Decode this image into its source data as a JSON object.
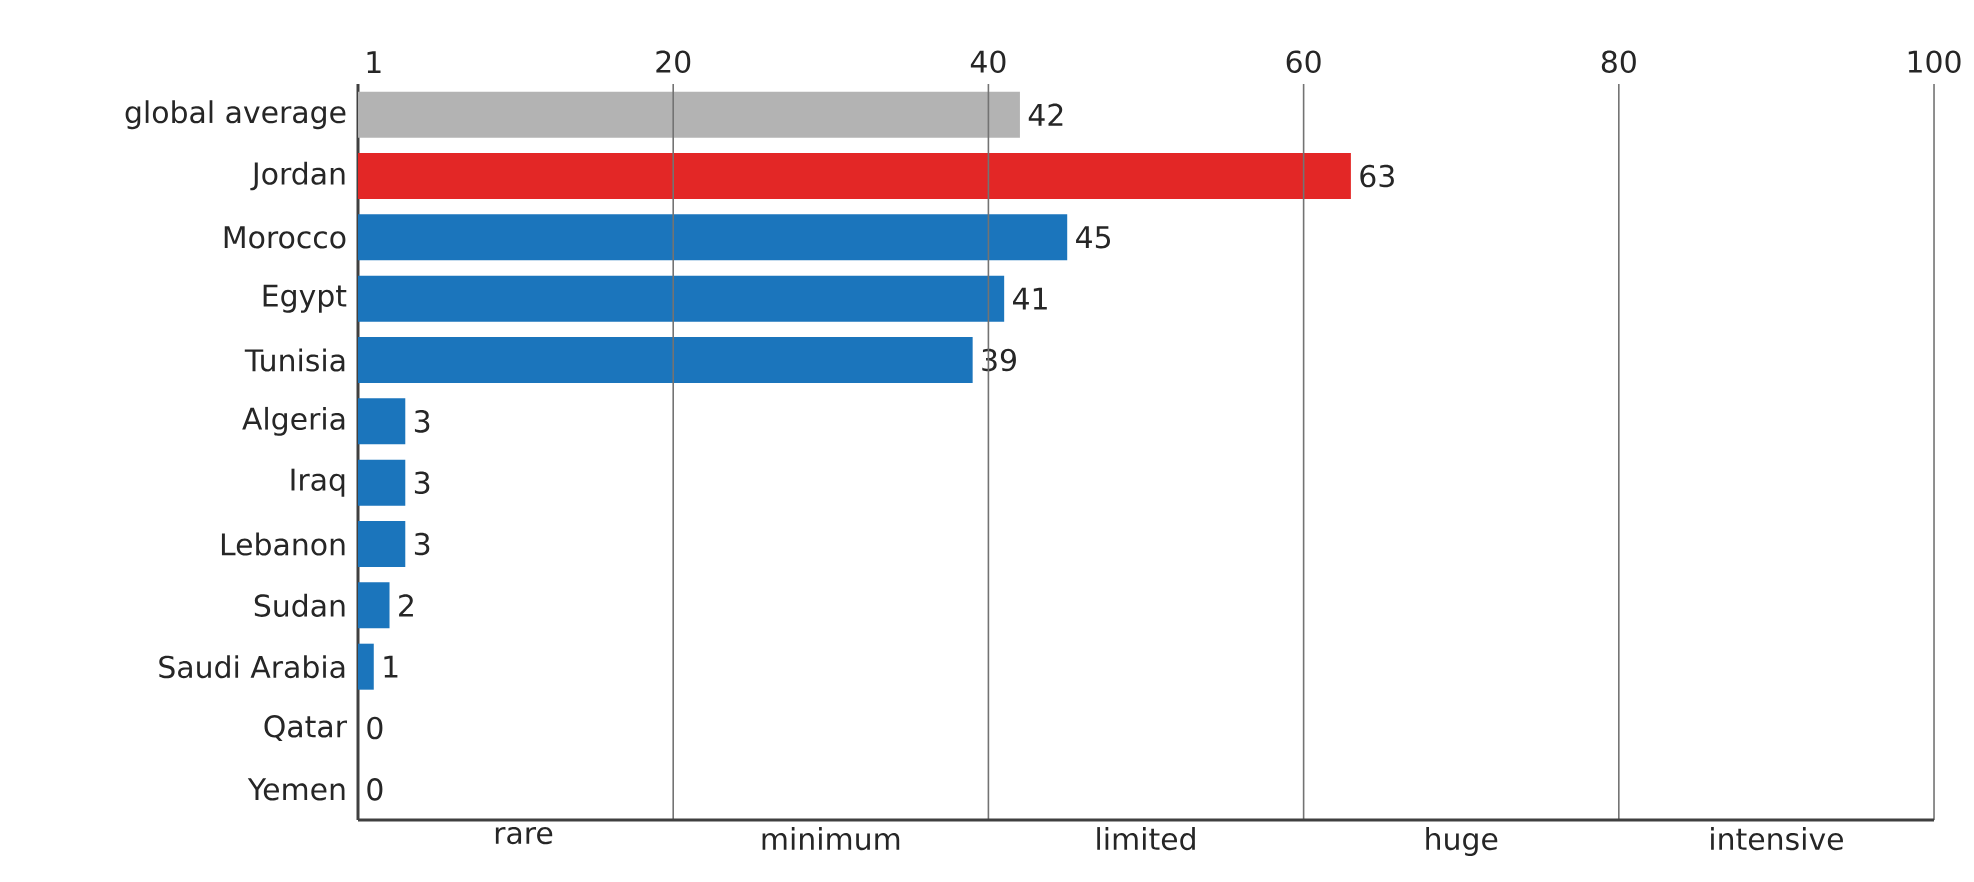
{
  "chart_data": {
    "type": "bar",
    "orientation": "horizontal",
    "categories": [
      "global average",
      "Jordan",
      "Morocco",
      "Egypt",
      "Tunisia",
      "Algeria",
      "Iraq",
      "Lebanon",
      "Sudan",
      "Saudi Arabia",
      "Qatar",
      "Yemen"
    ],
    "values": [
      42,
      63,
      45,
      41,
      39,
      3,
      3,
      3,
      2,
      1,
      0,
      0
    ],
    "colors": [
      "#b3b3b3",
      "#e32726",
      "#1b75bc",
      "#1b75bc",
      "#1b75bc",
      "#1b75bc",
      "#1b75bc",
      "#1b75bc",
      "#1b75bc",
      "#1b75bc",
      "#1b75bc",
      "#1b75bc"
    ],
    "xlim": [
      0,
      100
    ],
    "xticks": [
      1,
      20,
      40,
      60,
      80,
      100
    ],
    "annotations": [
      "rare",
      "minimum",
      "limited",
      "huge",
      "intensive"
    ],
    "grid": "x",
    "data_labels": true
  }
}
